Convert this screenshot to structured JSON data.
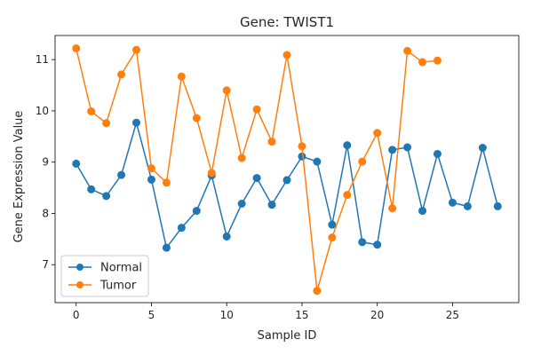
{
  "chart_data": {
    "type": "line",
    "title": "Gene: TWIST1",
    "xlabel": "Sample ID",
    "ylabel": "Gene Expression Value",
    "xlim": [
      -1.4,
      29.4
    ],
    "ylim": [
      6.26,
      11.47
    ],
    "xticks": [
      0,
      5,
      10,
      15,
      20,
      25
    ],
    "yticks": [
      7,
      8,
      9,
      10,
      11
    ],
    "grid": false,
    "legend_position": "lower-left",
    "series": [
      {
        "name": "Normal",
        "color": "#1f77b4",
        "x": [
          0,
          1,
          2,
          3,
          4,
          5,
          6,
          7,
          8,
          9,
          10,
          11,
          12,
          13,
          14,
          15,
          16,
          17,
          18,
          19,
          20,
          21,
          22,
          23,
          24,
          25,
          26,
          27,
          28
        ],
        "y": [
          8.97,
          8.47,
          8.34,
          8.75,
          9.77,
          8.66,
          7.33,
          7.72,
          8.05,
          8.74,
          7.55,
          8.19,
          8.69,
          8.17,
          8.65,
          9.11,
          9.01,
          7.78,
          9.33,
          7.44,
          7.39,
          9.24,
          9.29,
          8.05,
          9.16,
          8.21,
          8.14,
          9.28,
          8.14
        ]
      },
      {
        "name": "Tumor",
        "color": "#ff7f0e",
        "x": [
          0,
          1,
          2,
          3,
          4,
          5,
          6,
          7,
          8,
          9,
          10,
          11,
          12,
          13,
          14,
          15,
          16,
          17,
          18,
          19,
          20,
          21,
          22,
          23,
          24
        ],
        "y": [
          11.22,
          9.99,
          9.76,
          10.71,
          11.19,
          8.88,
          8.6,
          10.67,
          9.86,
          8.79,
          10.4,
          9.08,
          10.03,
          9.4,
          11.09,
          9.31,
          6.49,
          7.53,
          8.36,
          9.01,
          9.57,
          8.1,
          11.17,
          10.95,
          10.98
        ]
      }
    ]
  }
}
